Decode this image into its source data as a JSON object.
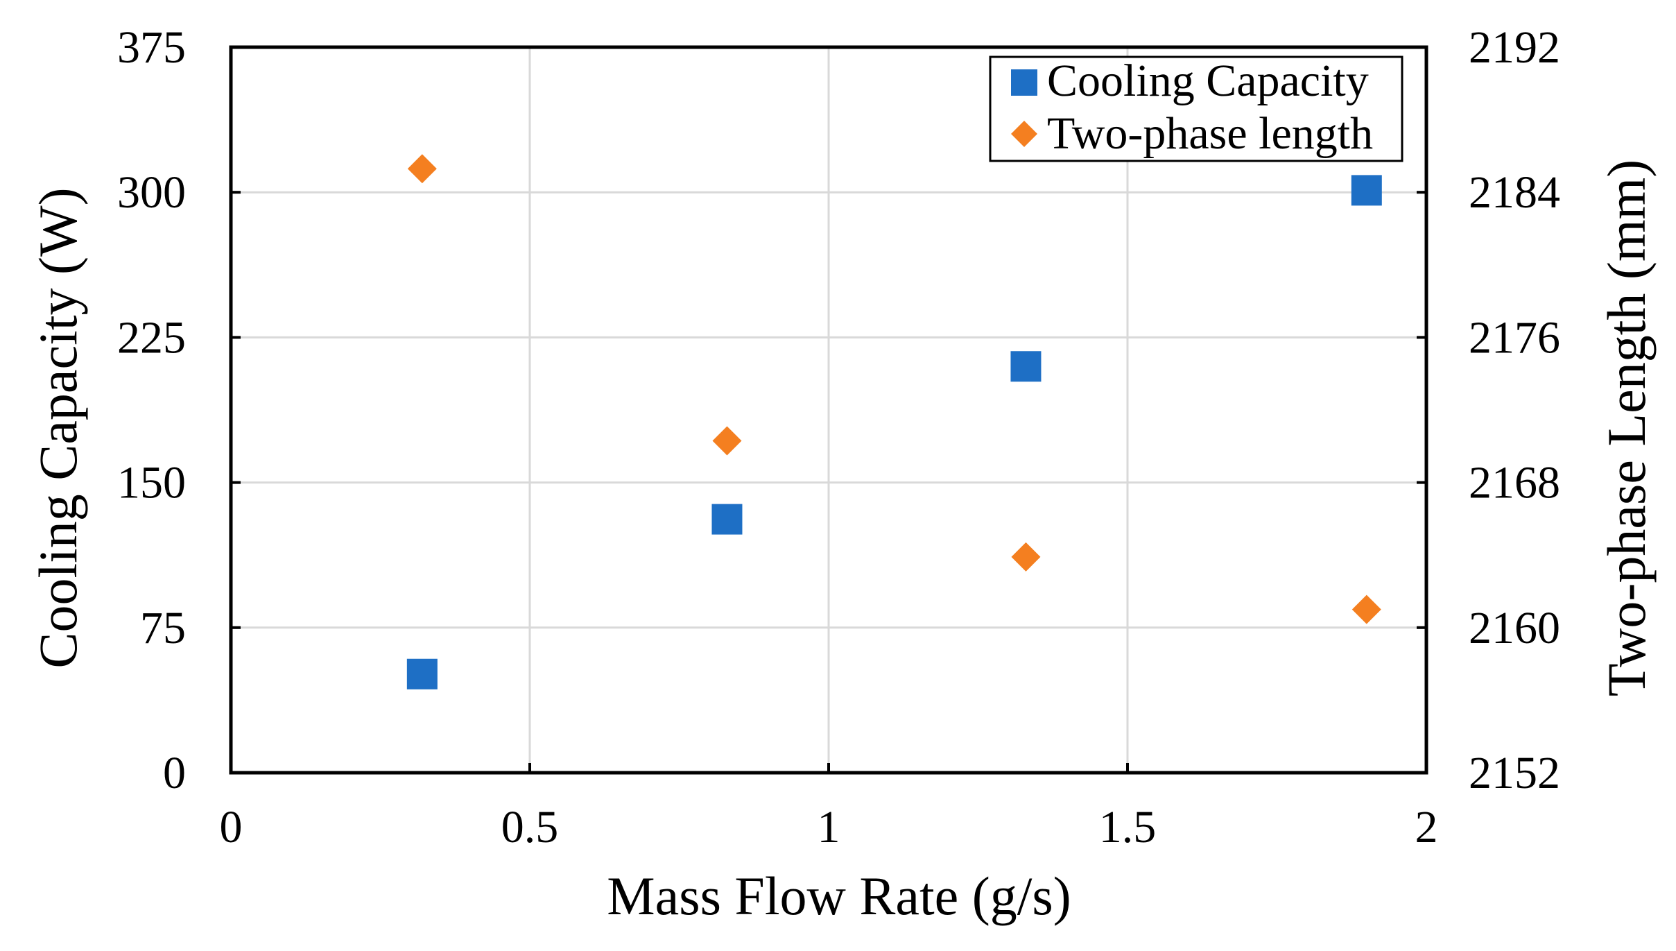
{
  "chart_data": {
    "type": "scatter",
    "title": "",
    "xlabel": "Mass Flow Rate (g/s)",
    "ylabel_left": "Cooling Capacity (W)",
    "ylabel_right": "Two-phase Length (mm)",
    "xlim": [
      0,
      2
    ],
    "ylim_left": [
      0,
      375
    ],
    "ylim_right": [
      2152,
      2192
    ],
    "x_ticks": [
      "0",
      "0.5",
      "1",
      "1.5",
      "2"
    ],
    "x_tick_values": [
      0,
      0.5,
      1,
      1.5,
      2
    ],
    "y_left_ticks": [
      "0",
      "75",
      "150",
      "225",
      "300",
      "375"
    ],
    "y_left_tick_values": [
      0,
      75,
      150,
      225,
      300,
      375
    ],
    "y_right_ticks": [
      "2152",
      "2160",
      "2168",
      "2176",
      "2184",
      "2192"
    ],
    "y_right_tick_values": [
      2152,
      2160,
      2168,
      2176,
      2184,
      2192
    ],
    "grid": true,
    "legend_position": "top-right",
    "series": [
      {
        "name": "Cooling Capacity",
        "axis": "left",
        "marker": "square",
        "color": "#1E6FC5",
        "x": [
          0.32,
          0.83,
          1.33,
          1.9
        ],
        "y": [
          51,
          131,
          210,
          301
        ]
      },
      {
        "name": "Two-phase length",
        "axis": "right",
        "marker": "diamond",
        "color": "#F47F20",
        "x": [
          0.32,
          0.83,
          1.33,
          1.9
        ],
        "y": [
          2185.3,
          2170.3,
          2163.9,
          2161.0
        ]
      }
    ]
  }
}
